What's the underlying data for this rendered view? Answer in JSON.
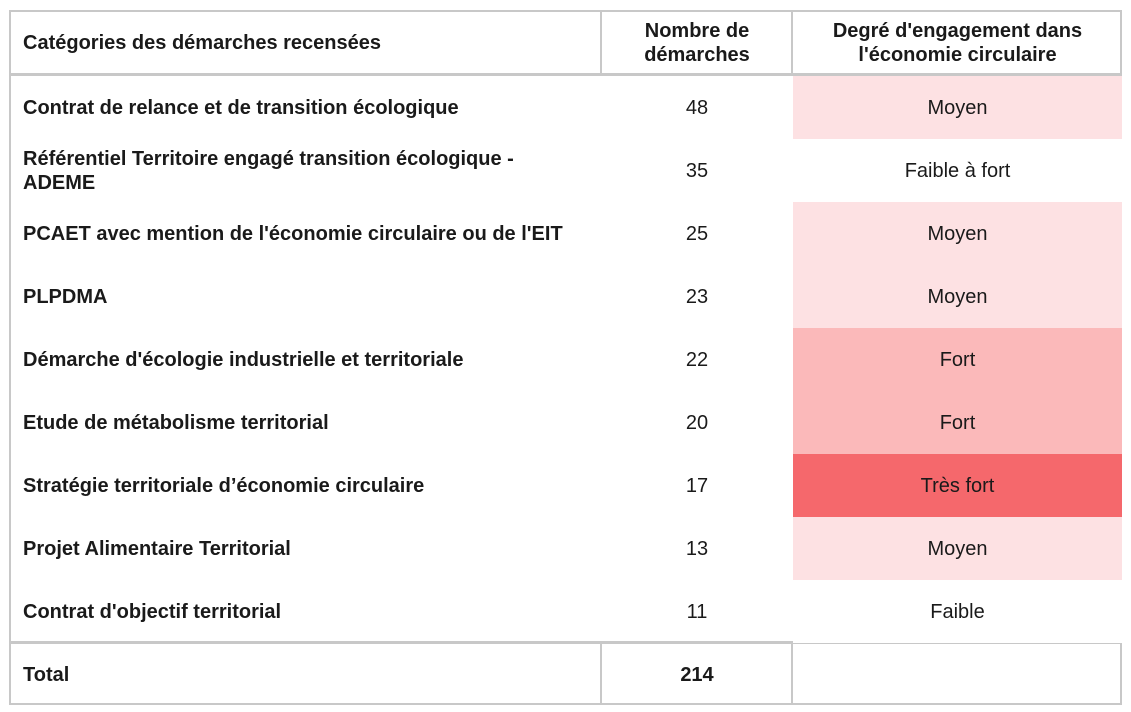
{
  "header": {
    "category": "Catégories des démarches recensées",
    "count": "Nombre de démarches",
    "degree": "Degré d'engagement dans l'économie circulaire"
  },
  "rows": [
    {
      "category": "Contrat de relance et de transition écologique",
      "count": "48",
      "degree": "Moyen",
      "color": "#fde1e3"
    },
    {
      "category": "Référentiel Territoire engagé transition écologique - ADEME",
      "count": "35",
      "degree": "Faible à fort",
      "color": "#ffffff"
    },
    {
      "category": "PCAET avec mention de l'économie circulaire ou de l'EIT",
      "count": "25",
      "degree": "Moyen",
      "color": "#fde1e3"
    },
    {
      "category": "PLPDMA",
      "count": "23",
      "degree": "Moyen",
      "color": "#fde1e3"
    },
    {
      "category": "Démarche d'écologie industrielle et territoriale",
      "count": "22",
      "degree": "Fort",
      "color": "#fbb9ba"
    },
    {
      "category": "Etude de métabolisme territorial",
      "count": "20",
      "degree": "Fort",
      "color": "#fbb9ba"
    },
    {
      "category": "Stratégie territoriale d’économie circulaire",
      "count": "17",
      "degree": "Très fort",
      "color": "#f5686c"
    },
    {
      "category": "Projet Alimentaire Territorial",
      "count": "13",
      "degree": "Moyen",
      "color": "#fde1e3"
    },
    {
      "category": "Contrat d'objectif territorial",
      "count": "11",
      "degree": "Faible",
      "color": "#ffffff"
    }
  ],
  "total": {
    "label": "Total",
    "count": "214",
    "degree": ""
  }
}
